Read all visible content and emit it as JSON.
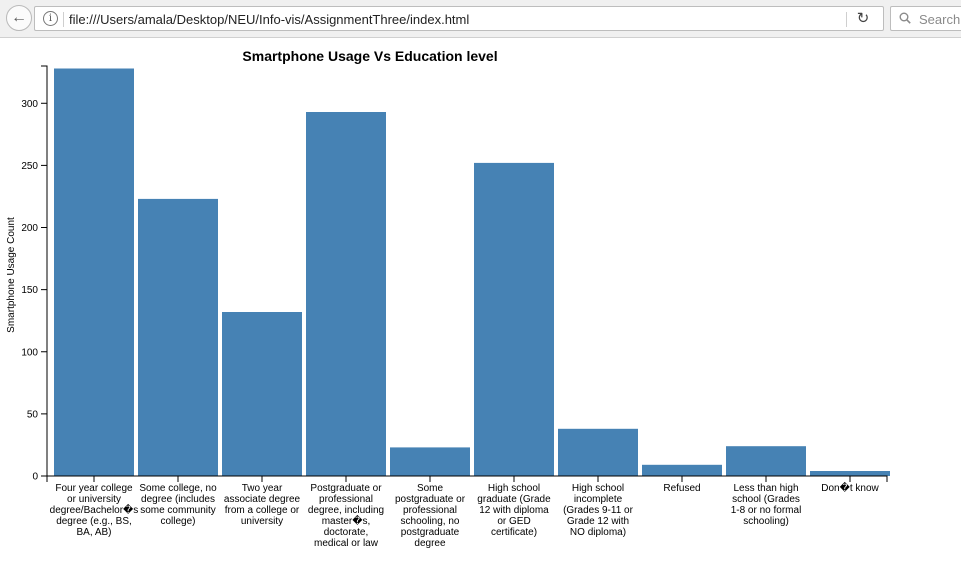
{
  "browser": {
    "url": "file:///Users/amala/Desktop/NEU/Info-vis/AssignmentThree/index.html",
    "search_placeholder": "Search"
  },
  "chart_data": {
    "type": "bar",
    "title": "Smartphone Usage Vs Education level",
    "xlabel": "",
    "ylabel": "Smartphone Usage Count",
    "ylim": [
      0,
      330
    ],
    "yticks": [
      0,
      50,
      100,
      150,
      200,
      250,
      300
    ],
    "grid": false,
    "bar_color": "#4682b4",
    "categories": [
      "Four year college or university degree/Bachelor�s degree (e.g., BS, BA, AB)",
      "Some college, no degree (includes some community college)",
      "Two year associate degree from a college or university",
      "Postgraduate or professional degree, including master�s, doctorate, medical or law",
      "Some postgraduate or professional schooling, no postgraduate degree",
      "High school graduate (Grade 12 with diploma or GED certificate)",
      "High school incomplete (Grades 9-11 or Grade 12 with NO diploma)",
      "Refused",
      "Less than high school (Grades 1-8 or no formal schooling)",
      "Don�t know"
    ],
    "category_lines": [
      [
        "Four year college",
        "or university",
        "degree/Bachelor�s",
        "degree (e.g., BS,",
        "BA, AB)"
      ],
      [
        "Some college, no",
        "degree (includes",
        "some community",
        "college)"
      ],
      [
        "Two year",
        "associate degree",
        "from a college or",
        "university"
      ],
      [
        "Postgraduate or",
        "professional",
        "degree, including",
        "master�s,",
        "doctorate,",
        "medical or law"
      ],
      [
        "Some",
        "postgraduate or",
        "professional",
        "schooling, no",
        "postgraduate",
        "degree"
      ],
      [
        "High school",
        "graduate (Grade",
        "12 with diploma",
        "or GED",
        "certificate)"
      ],
      [
        "High school",
        "incomplete",
        "(Grades 9-11 or",
        "Grade 12 with",
        "NO diploma)"
      ],
      [
        "Refused"
      ],
      [
        "Less than high",
        "school (Grades",
        "1-8 or no formal",
        "schooling)"
      ],
      [
        "Don�t know"
      ]
    ],
    "values": [
      328,
      223,
      132,
      293,
      23,
      252,
      38,
      9,
      24,
      4
    ]
  }
}
